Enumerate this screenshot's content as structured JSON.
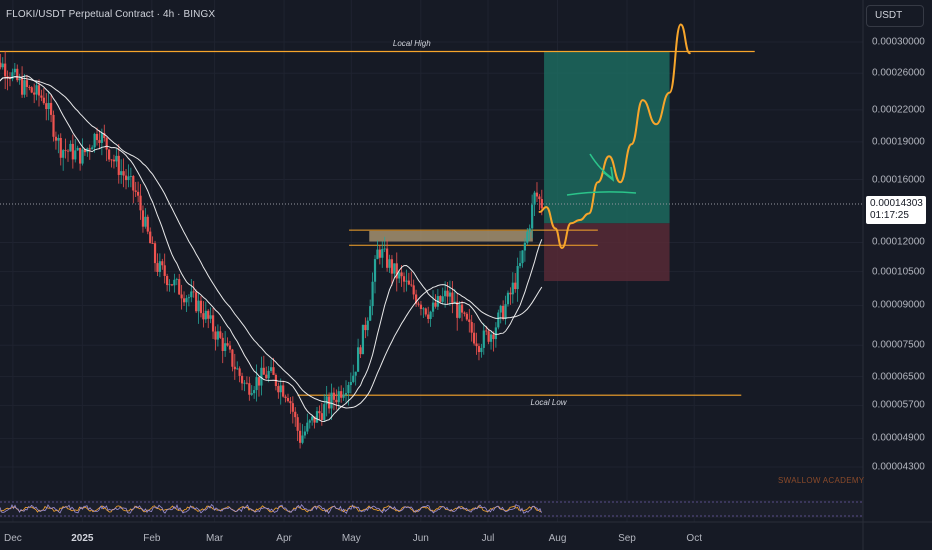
{
  "header": {
    "title": "FLOKI/USDT Perpetual Contract · 4h · BINGX"
  },
  "currency_button": "USDT",
  "price_axis": {
    "ticks": [
      "0.00030000",
      "0.00026000",
      "0.00022000",
      "0.00019000",
      "0.00016000",
      "0.00012000",
      "0.00010500",
      "0.00009000",
      "0.00007500",
      "0.00006500",
      "0.00005700",
      "0.00004900",
      "0.00004300"
    ]
  },
  "time_axis": {
    "ticks": [
      "Dec",
      "2025",
      "Feb",
      "Mar",
      "Apr",
      "May",
      "Jun",
      "Jul",
      "Aug",
      "Sep",
      "Oct"
    ]
  },
  "current_price": {
    "value": "0.00014303",
    "countdown": "01:17:25"
  },
  "annotations": {
    "local_high": "Local High",
    "local_low": "Local Low",
    "watermark": "SWALLOW ACADEMY"
  },
  "colors": {
    "background": "#161a25",
    "up": "#26a69a",
    "down": "#ef5350",
    "level_line": "#f7a52b",
    "target_zone": "#1e7466",
    "stop_zone": "#5b2a37",
    "projection": "#f7a52b",
    "arrow": "#2bc48a",
    "ma": "#ffffff"
  },
  "chart_data": {
    "type": "candlestick",
    "symbol": "FLOKI/USDT Perpetual Contract",
    "interval": "4h",
    "exchange": "BINGX",
    "y_scale": "log",
    "ylim": [
      3.9e-05,
      0.000335
    ],
    "x_range": [
      "2024-11-19",
      "2025-10-25"
    ],
    "close_path": [
      [
        "2024-11-20",
        0.000235
      ],
      [
        "2024-11-25",
        0.000275
      ],
      [
        "2024-12-05",
        0.000245
      ],
      [
        "2024-12-15",
        0.000232
      ],
      [
        "2024-12-22",
        0.000185
      ],
      [
        "2025-01-01",
        0.000178
      ],
      [
        "2025-01-08",
        0.0002
      ],
      [
        "2025-01-15",
        0.000175
      ],
      [
        "2025-01-25",
        0.00015
      ],
      [
        "2025-02-03",
        0.000108
      ],
      [
        "2025-02-12",
        9.8e-05
      ],
      [
        "2025-02-22",
        9e-05
      ],
      [
        "2025-03-05",
        7.5e-05
      ],
      [
        "2025-03-15",
        6.2e-05
      ],
      [
        "2025-03-25",
        6.6e-05
      ],
      [
        "2025-04-03",
        6e-05
      ],
      [
        "2025-04-08",
        4.9e-05
      ],
      [
        "2025-04-15",
        5.4e-05
      ],
      [
        "2025-04-25",
        6e-05
      ],
      [
        "2025-05-02",
        6.6e-05
      ],
      [
        "2025-05-08",
        8.5e-05
      ],
      [
        "2025-05-13",
        0.000117
      ],
      [
        "2025-05-20",
        0.000105
      ],
      [
        "2025-05-27",
        9.7e-05
      ],
      [
        "2025-06-05",
        8.7e-05
      ],
      [
        "2025-06-13",
        9.5e-05
      ],
      [
        "2025-06-20",
        8.4e-05
      ],
      [
        "2025-06-27",
        7.6e-05
      ],
      [
        "2025-07-03",
        8e-05
      ],
      [
        "2025-07-10",
        9.2e-05
      ],
      [
        "2025-07-15",
        0.000106
      ],
      [
        "2025-07-19",
        0.000128
      ],
      [
        "2025-07-22",
        0.00015
      ],
      [
        "2025-07-25",
        0.000143
      ]
    ],
    "moving_averages": [
      "white MA (short)",
      "white MA (long)"
    ],
    "levels": [
      {
        "label": "Local High",
        "price": 0.0002873
      },
      {
        "label": "Local Low",
        "price": 5.97e-05
      }
    ],
    "demand_zone": {
      "from": 0.0001205,
      "to": 0.0001265
    },
    "position": {
      "entry": 0.000131,
      "target": 0.000287,
      "stop": 0.0001006,
      "start": "2025-07-26",
      "end": "2025-09-20"
    },
    "projection_path": [
      [
        "2025-07-24",
        0.000138
      ],
      [
        "2025-07-27",
        0.000141
      ],
      [
        "2025-07-31",
        0.000128
      ],
      [
        "2025-08-03",
        0.000117
      ],
      [
        "2025-08-07",
        0.000131
      ],
      [
        "2025-08-11",
        0.000133
      ],
      [
        "2025-08-15",
        0.000137
      ],
      [
        "2025-08-19",
        0.000158
      ],
      [
        "2025-08-24",
        0.000178
      ],
      [
        "2025-08-29",
        0.000158
      ],
      [
        "2025-09-03",
        0.000188
      ],
      [
        "2025-09-08",
        0.00023
      ],
      [
        "2025-09-14",
        0.000206
      ],
      [
        "2025-09-20",
        0.000238
      ],
      [
        "2025-09-25",
        0.000325
      ],
      [
        "2025-09-29",
        0.000285
      ]
    ],
    "last_price": 0.00014303
  }
}
